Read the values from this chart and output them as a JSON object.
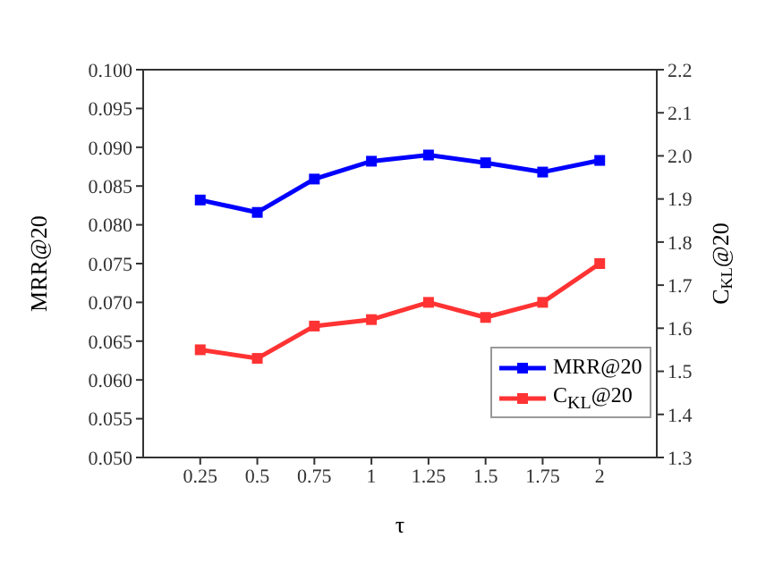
{
  "chart_data": {
    "type": "line",
    "xlabel": "τ",
    "ylabel": "MRR@20",
    "y2label": "C$_{KL}$@20",
    "x": [
      0.25,
      0.5,
      0.75,
      1,
      1.25,
      1.5,
      1.75,
      2
    ],
    "xlim": [
      0,
      2.25
    ],
    "xticks": [
      0.25,
      0.5,
      0.75,
      1,
      1.25,
      1.5,
      1.75,
      2
    ],
    "ylim": [
      0.05,
      0.1
    ],
    "yticks": [
      {
        "value": 0.05,
        "label": "0.050"
      },
      {
        "value": 0.055,
        "label": "0.055"
      },
      {
        "value": 0.06,
        "label": "0.060"
      },
      {
        "value": 0.065,
        "label": "0.065"
      },
      {
        "value": 0.07,
        "label": "0.070"
      },
      {
        "value": 0.075,
        "label": "0.075"
      },
      {
        "value": 0.08,
        "label": "0.080"
      },
      {
        "value": 0.085,
        "label": "0.085"
      },
      {
        "value": 0.09,
        "label": "0.090"
      },
      {
        "value": 0.095,
        "label": "0.095"
      },
      {
        "value": 0.1,
        "label": "0.100"
      }
    ],
    "y2lim": [
      1.3,
      2.2
    ],
    "y2ticks": [
      1.3,
      1.4,
      1.5,
      1.6,
      1.7,
      1.8,
      1.9,
      {
        "value": 2.0,
        "label": "2.0"
      },
      2.1,
      2.2
    ],
    "marker": "square",
    "legend": "bottom right",
    "grid": false,
    "series": [
      {
        "name": "MRR@20",
        "color": "#0000ff",
        "values": [
          0.0832,
          0.0816,
          0.0859,
          0.0882,
          0.089,
          0.088,
          0.0868,
          0.0883
        ]
      },
      {
        "name": "C$_{KL}$@20",
        "color": "#ff3333",
        "axis": "y2",
        "values": [
          1.55,
          1.53,
          1.605,
          1.62,
          1.66,
          1.625,
          1.66,
          1.75
        ]
      }
    ]
  }
}
